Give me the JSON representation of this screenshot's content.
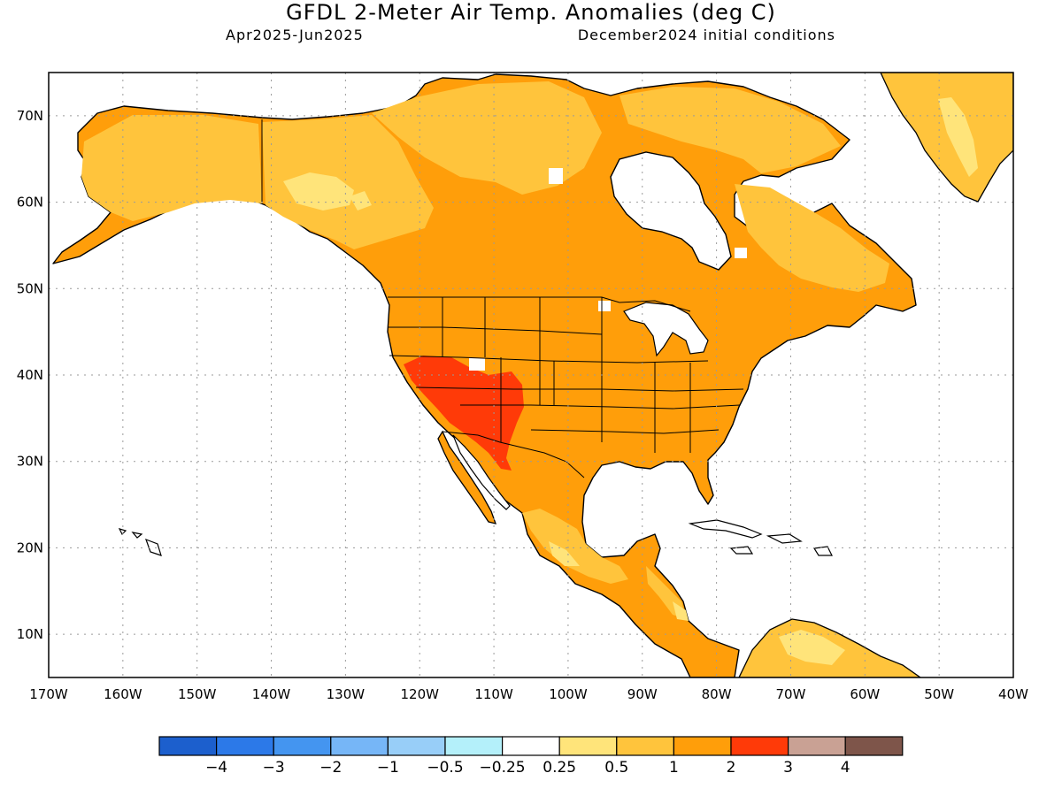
{
  "title": "GFDL 2-Meter Air Temp. Anomalies (deg C)",
  "subtitle_left": "Apr2025-Jun2025",
  "subtitle_right": "December2024 initial conditions",
  "colors": {
    "ocean": "#ffffff",
    "coast": "#000000",
    "grid": "#9a9a9a"
  },
  "map": {
    "lon_range": [
      -170,
      -40
    ],
    "lat_range": [
      5,
      75
    ],
    "lon_ticks": [
      "170W",
      "160W",
      "150W",
      "140W",
      "130W",
      "120W",
      "110W",
      "100W",
      "90W",
      "80W",
      "70W",
      "60W",
      "50W",
      "40W"
    ],
    "lat_ticks": [
      "10N",
      "20N",
      "30N",
      "40N",
      "50N",
      "60N",
      "70N"
    ]
  },
  "legend": {
    "colors": [
      "#1c5fcd",
      "#2c79e8",
      "#4495f0",
      "#76b6f7",
      "#98cef8",
      "#b4f0fa",
      "#ffffff",
      "#ffe47a",
      "#ffc43c",
      "#ff9e0a",
      "#ff3a08",
      "#c9a194",
      "#7e554a"
    ],
    "labels": [
      "−4",
      "−3",
      "−2",
      "−1",
      "−0.5",
      "−0.25",
      "0.25",
      "0.5",
      "1",
      "2",
      "3",
      "4"
    ]
  }
}
